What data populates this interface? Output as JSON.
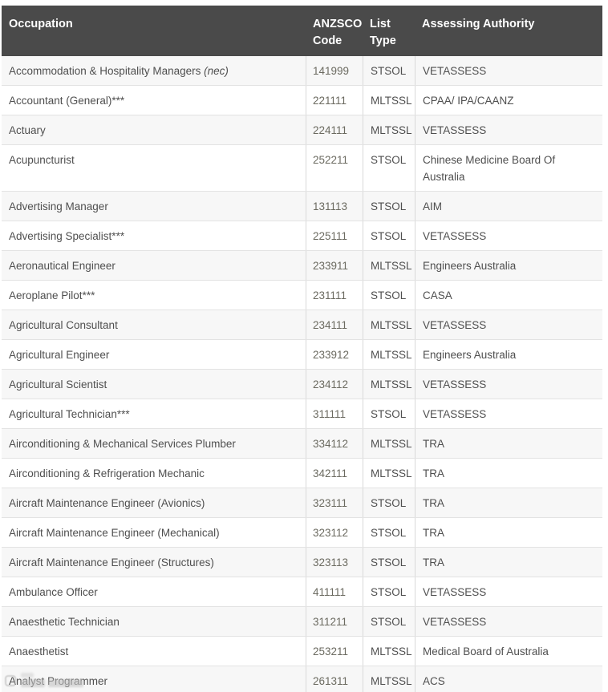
{
  "header": {
    "columns": [
      "Occupation",
      "ANZSCO Code",
      "List Type",
      "Assessing Authority"
    ]
  },
  "rows": [
    {
      "occupation": "Accommodation & Hospitality Managers ",
      "note": "(nec)",
      "code": "141999",
      "list": "STSOL",
      "authority": "VETASSESS"
    },
    {
      "occupation": "Accountant (General)***",
      "code": "221111",
      "list": "MLTSSL",
      "authority": "CPAA/ IPA/CAANZ"
    },
    {
      "occupation": "Actuary",
      "code": "224111",
      "list": "MLTSSL",
      "authority": "VETASSESS"
    },
    {
      "occupation": "Acupuncturist",
      "code": "252211",
      "list": "STSOL",
      "authority": "Chinese Medicine Board Of Australia"
    },
    {
      "occupation": "Advertising Manager",
      "code": "131113",
      "list": "STSOL",
      "authority": "AIM"
    },
    {
      "occupation": "Advertising Specialist***",
      "code": "225111",
      "list": "STSOL",
      "authority": "VETASSESS"
    },
    {
      "occupation": "Aeronautical Engineer",
      "code": "233911",
      "list": "MLTSSL",
      "authority": "Engineers Australia"
    },
    {
      "occupation": "Aeroplane Pilot***",
      "code": "231111",
      "list": "STSOL",
      "authority": "CASA"
    },
    {
      "occupation": "Agricultural Consultant",
      "code": "234111",
      "list": "MLTSSL",
      "authority": "VETASSESS"
    },
    {
      "occupation": "Agricultural Engineer",
      "code": "233912",
      "list": "MLTSSL",
      "authority": "Engineers Australia"
    },
    {
      "occupation": "Agricultural Scientist",
      "code": "234112",
      "list": "MLTSSL",
      "authority": "VETASSESS"
    },
    {
      "occupation": "Agricultural Technician***",
      "code": "311111",
      "list": "STSOL",
      "authority": "VETASSESS"
    },
    {
      "occupation": "Airconditioning & Mechanical Services Plumber",
      "code": "334112",
      "list": "MLTSSL",
      "authority": "TRA"
    },
    {
      "occupation": "Airconditioning & Refrigeration Mechanic",
      "code": "342111",
      "list": "MLTSSL",
      "authority": "TRA"
    },
    {
      "occupation": "Aircraft Maintenance Engineer (Avionics)",
      "code": "323111",
      "list": "STSOL",
      "authority": "TRA"
    },
    {
      "occupation": "Aircraft Maintenance Engineer (Mechanical)",
      "code": "323112",
      "list": "STSOL",
      "authority": "TRA"
    },
    {
      "occupation": "Aircraft Maintenance Engineer (Structures)",
      "code": "323113",
      "list": "STSOL",
      "authority": "TRA"
    },
    {
      "occupation": "Ambulance Officer",
      "code": "411111",
      "list": "STSOL",
      "authority": "VETASSESS"
    },
    {
      "occupation": "Anaesthetic Technician",
      "code": "311211",
      "list": "STSOL",
      "authority": "VETASSESS"
    },
    {
      "occupation": "Anaesthetist",
      "code": "253211",
      "list": "MLTSSL",
      "authority": "Medical Board of Australia"
    },
    {
      "occupation": "Analyst Programmer",
      "code": "261311",
      "list": "MLTSSL",
      "authority": "ACS"
    }
  ],
  "colors": {
    "header_bg": "#4a4a4a",
    "header_text": "#ffffff",
    "row_bg": "#ffffff",
    "row_alt_bg": "#f7f7f7",
    "border_h": "#e3e3e3",
    "border_v": "#d9d9d9",
    "text": "#4f4f4f",
    "code_text": "#6b6a60"
  }
}
